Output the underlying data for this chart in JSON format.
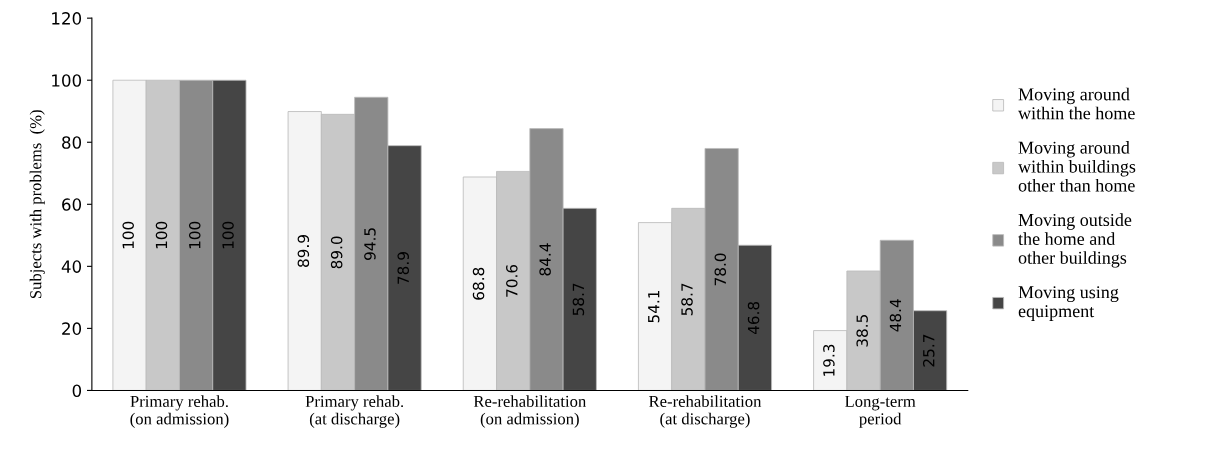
{
  "chart_data": {
    "type": "bar",
    "ylabel": "Subjects with problems  (%)",
    "categories": [
      "Primary rehab.\n(on admission)",
      "Primary rehab.\n(at discharge)",
      "Re-rehabilitation\n(on admission)",
      "Re-rehabilitation\n(at discharge)",
      "Long-term\nperiod"
    ],
    "series": [
      {
        "name": "Moving around\nwithin the home",
        "color": "#f4f4f4",
        "values": [
          100,
          89.9,
          68.8,
          54.1,
          19.3
        ],
        "value_labels": [
          "100",
          "89.9",
          "68.8",
          "54.1",
          "19.3"
        ]
      },
      {
        "name": "Moving around\nwithin buildings\nother than home",
        "color": "#c8c8c8",
        "values": [
          100,
          89.0,
          70.6,
          58.7,
          38.5
        ],
        "value_labels": [
          "100",
          "89.0",
          "70.6",
          "58.7",
          "38.5"
        ]
      },
      {
        "name": "Moving outside\nthe home and\nother buildings",
        "color": "#8a8a8a",
        "values": [
          100,
          94.5,
          84.4,
          78.0,
          48.4
        ],
        "value_labels": [
          "100",
          "94.5",
          "84.4",
          "78.0",
          "48.4"
        ]
      },
      {
        "name": "Moving using\nequipment",
        "color": "#454545",
        "values": [
          100,
          78.9,
          58.7,
          46.8,
          25.7
        ],
        "value_labels": [
          "100",
          "78.9",
          "58.7",
          "46.8",
          "25.7"
        ]
      }
    ],
    "ylim": [
      0,
      120
    ],
    "yticks": [
      0,
      20,
      40,
      60,
      80,
      100,
      120
    ],
    "grid": false,
    "legend": "right"
  }
}
